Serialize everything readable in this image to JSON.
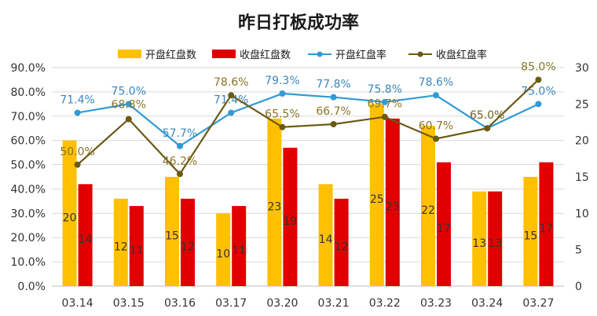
{
  "chart_data": {
    "type": "bar",
    "title": "昨日打板成功率",
    "categories": [
      "03.14",
      "03.15",
      "03.16",
      "03.17",
      "03.20",
      "03.21",
      "03.22",
      "03.23",
      "03.24",
      "03.27"
    ],
    "series": [
      {
        "name": "开盘红盘数",
        "type": "bar",
        "axis": "right",
        "color": "#FFC000",
        "values": [
          20,
          12,
          15,
          10,
          23,
          14,
          25,
          22,
          13,
          15
        ]
      },
      {
        "name": "收盘红盘数",
        "type": "bar",
        "axis": "right",
        "color": "#E00000",
        "values": [
          14,
          11,
          12,
          11,
          19,
          12,
          23,
          17,
          13,
          17
        ]
      },
      {
        "name": "开盘红盘率",
        "type": "line",
        "axis": "left",
        "color": "#2E9BD6",
        "labelColor": "#3A87BE",
        "values": [
          71.4,
          75.0,
          57.7,
          71.4,
          79.3,
          77.8,
          75.8,
          78.6,
          65.0,
          75.0
        ],
        "labels": [
          "71.4%",
          "75.0%",
          "57.7%",
          "71.4%",
          "79.3%",
          "77.8%",
          "75.8%",
          "78.6%",
          "65.0%",
          "75.0%"
        ]
      },
      {
        "name": "收盘红盘率",
        "type": "line",
        "axis": "left",
        "color": "#6B5A14",
        "labelColor": "#8A7428",
        "values": [
          50.0,
          68.8,
          46.2,
          78.6,
          65.5,
          66.7,
          69.7,
          60.7,
          65.0,
          85.0
        ],
        "labels": [
          "50.0%",
          "68.8%",
          "46.2%",
          "78.6%",
          "65.5%",
          "66.7%",
          "69.7%",
          "60.7%",
          "65.0%",
          "85.0%"
        ]
      }
    ],
    "left_axis": {
      "ylim": [
        0,
        90
      ],
      "ticks": [
        "0.0%",
        "10.0%",
        "20.0%",
        "30.0%",
        "40.0%",
        "50.0%",
        "60.0%",
        "70.0%",
        "80.0%",
        "90.0%"
      ]
    },
    "right_axis": {
      "ylim": [
        0,
        30
      ],
      "ticks": [
        "0",
        "5",
        "10",
        "15",
        "20",
        "25",
        "30"
      ]
    },
    "legend": "top",
    "grid": true
  }
}
